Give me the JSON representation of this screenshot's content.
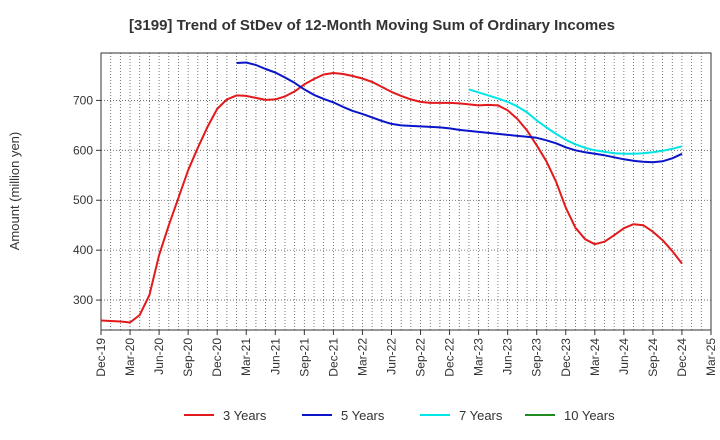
{
  "chart_data": {
    "type": "line",
    "title": "[3199]  Trend of StDev of 12-Month Moving Sum of Ordinary Incomes",
    "ylabel": "Amount (million yen)",
    "xlabel": "",
    "ylim": [
      240,
      795
    ],
    "yticks": [
      300,
      400,
      500,
      600,
      700
    ],
    "xlim": [
      "2019-12",
      "2025-03"
    ],
    "xticks": [
      "Dec-19",
      "Mar-20",
      "Jun-20",
      "Sep-20",
      "Dec-20",
      "Mar-21",
      "Jun-21",
      "Sep-21",
      "Dec-21",
      "Mar-22",
      "Jun-22",
      "Sep-22",
      "Dec-22",
      "Mar-23",
      "Jun-23",
      "Sep-23",
      "Dec-23",
      "Mar-24",
      "Jun-24",
      "Sep-24",
      "Dec-24",
      "Mar-25"
    ],
    "grid": true,
    "legend_position": "bottom",
    "series": [
      {
        "name": "3 Years",
        "color": "#e31a1c",
        "points": [
          [
            "2019-12",
            259
          ],
          [
            "2020-01",
            258
          ],
          [
            "2020-02",
            257
          ],
          [
            "2020-03",
            255
          ],
          [
            "2020-04",
            270
          ],
          [
            "2020-05",
            310
          ],
          [
            "2020-06",
            390
          ],
          [
            "2020-07",
            450
          ],
          [
            "2020-08",
            505
          ],
          [
            "2020-09",
            560
          ],
          [
            "2020-10",
            605
          ],
          [
            "2020-11",
            647
          ],
          [
            "2020-12",
            683
          ],
          [
            "2021-01",
            702
          ],
          [
            "2021-02",
            710
          ],
          [
            "2021-03",
            709
          ],
          [
            "2021-04",
            705
          ],
          [
            "2021-05",
            701
          ],
          [
            "2021-06",
            702
          ],
          [
            "2021-07",
            708
          ],
          [
            "2021-08",
            718
          ],
          [
            "2021-09",
            732
          ],
          [
            "2021-10",
            743
          ],
          [
            "2021-11",
            752
          ],
          [
            "2021-12",
            755
          ],
          [
            "2022-01",
            753
          ],
          [
            "2022-02",
            749
          ],
          [
            "2022-03",
            744
          ],
          [
            "2022-04",
            737
          ],
          [
            "2022-05",
            727
          ],
          [
            "2022-06",
            717
          ],
          [
            "2022-07",
            709
          ],
          [
            "2022-08",
            702
          ],
          [
            "2022-09",
            697
          ],
          [
            "2022-10",
            695
          ],
          [
            "2022-11",
            695
          ],
          [
            "2022-12",
            695
          ],
          [
            "2023-01",
            694
          ],
          [
            "2023-02",
            692
          ],
          [
            "2023-03",
            690
          ],
          [
            "2023-04",
            691
          ],
          [
            "2023-05",
            690
          ],
          [
            "2023-06",
            680
          ],
          [
            "2023-07",
            663
          ],
          [
            "2023-08",
            640
          ],
          [
            "2023-09",
            610
          ],
          [
            "2023-10",
            578
          ],
          [
            "2023-11",
            537
          ],
          [
            "2023-12",
            485
          ],
          [
            "2024-01",
            445
          ],
          [
            "2024-02",
            422
          ],
          [
            "2024-03",
            412
          ],
          [
            "2024-04",
            417
          ],
          [
            "2024-05",
            430
          ],
          [
            "2024-06",
            444
          ],
          [
            "2024-07",
            452
          ],
          [
            "2024-08",
            450
          ],
          [
            "2024-09",
            437
          ],
          [
            "2024-10",
            420
          ],
          [
            "2024-11",
            398
          ],
          [
            "2024-12",
            373
          ]
        ]
      },
      {
        "name": "5 Years",
        "color": "#0a14c8",
        "points": [
          [
            "2021-02",
            775
          ],
          [
            "2021-03",
            776
          ],
          [
            "2021-04",
            771
          ],
          [
            "2021-05",
            763
          ],
          [
            "2021-06",
            756
          ],
          [
            "2021-07",
            746
          ],
          [
            "2021-08",
            735
          ],
          [
            "2021-09",
            722
          ],
          [
            "2021-10",
            711
          ],
          [
            "2021-11",
            703
          ],
          [
            "2021-12",
            696
          ],
          [
            "2022-01",
            687
          ],
          [
            "2022-02",
            679
          ],
          [
            "2022-03",
            673
          ],
          [
            "2022-04",
            666
          ],
          [
            "2022-05",
            659
          ],
          [
            "2022-06",
            653
          ],
          [
            "2022-07",
            650
          ],
          [
            "2022-08",
            649
          ],
          [
            "2022-09",
            648
          ],
          [
            "2022-10",
            647
          ],
          [
            "2022-11",
            646
          ],
          [
            "2022-12",
            644
          ],
          [
            "2023-01",
            641
          ],
          [
            "2023-02",
            639
          ],
          [
            "2023-03",
            637
          ],
          [
            "2023-04",
            635
          ],
          [
            "2023-05",
            633
          ],
          [
            "2023-06",
            631
          ],
          [
            "2023-07",
            629
          ],
          [
            "2023-08",
            627
          ],
          [
            "2023-09",
            625
          ],
          [
            "2023-10",
            620
          ],
          [
            "2023-11",
            614
          ],
          [
            "2023-12",
            606
          ],
          [
            "2024-01",
            600
          ],
          [
            "2024-02",
            596
          ],
          [
            "2024-03",
            593
          ],
          [
            "2024-04",
            590
          ],
          [
            "2024-05",
            586
          ],
          [
            "2024-06",
            582
          ],
          [
            "2024-07",
            579
          ],
          [
            "2024-08",
            577
          ],
          [
            "2024-09",
            576
          ],
          [
            "2024-10",
            578
          ],
          [
            "2024-11",
            584
          ],
          [
            "2024-12",
            593
          ]
        ]
      },
      {
        "name": "7 Years",
        "color": "#00e5e5",
        "points": [
          [
            "2023-02",
            722
          ],
          [
            "2023-03",
            716
          ],
          [
            "2023-04",
            710
          ],
          [
            "2023-05",
            704
          ],
          [
            "2023-06",
            697
          ],
          [
            "2023-07",
            688
          ],
          [
            "2023-08",
            676
          ],
          [
            "2023-09",
            660
          ],
          [
            "2023-10",
            646
          ],
          [
            "2023-11",
            633
          ],
          [
            "2023-12",
            621
          ],
          [
            "2024-01",
            612
          ],
          [
            "2024-02",
            605
          ],
          [
            "2024-03",
            600
          ],
          [
            "2024-04",
            597
          ],
          [
            "2024-05",
            594
          ],
          [
            "2024-06",
            593
          ],
          [
            "2024-07",
            593
          ],
          [
            "2024-08",
            594
          ],
          [
            "2024-09",
            596
          ],
          [
            "2024-10",
            599
          ],
          [
            "2024-11",
            603
          ],
          [
            "2024-12",
            608
          ]
        ]
      },
      {
        "name": "10 Years",
        "color": "#1e8c1e",
        "points": []
      }
    ]
  }
}
